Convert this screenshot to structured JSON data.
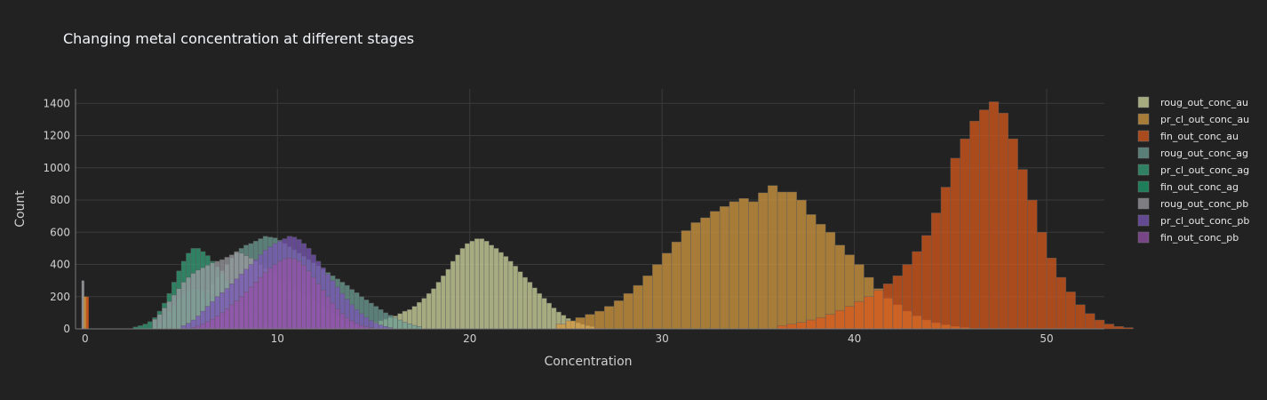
{
  "chart_data": {
    "type": "bar",
    "barmode": "overlay",
    "title": "Changing metal concentration at different stages",
    "xlabel": "Concentration",
    "ylabel": "Count",
    "xlim": [
      -0.5,
      53
    ],
    "ylim": [
      0,
      1490
    ],
    "xticks": [
      0,
      10,
      20,
      30,
      40,
      50
    ],
    "yticks": [
      0,
      200,
      400,
      600,
      800,
      1000,
      1200,
      1400
    ],
    "grid": true,
    "legend_position": "right",
    "spike_at_zero": {
      "x": 0,
      "values": {
        "roug_out_conc_pb": 300,
        "pr_cl_out_conc_au": 200,
        "fin_out_conc_au": 200
      }
    },
    "series": [
      {
        "name": "roug_out_conc_au",
        "color": "#d4d9a0",
        "bin_start": 15,
        "bin_width": 0.25,
        "values": [
          40,
          50,
          60,
          70,
          80,
          95,
          110,
          120,
          140,
          165,
          190,
          220,
          250,
          290,
          330,
          370,
          420,
          460,
          500,
          530,
          545,
          560,
          560,
          545,
          520,
          500,
          475,
          450,
          420,
          390,
          355,
          320,
          290,
          255,
          220,
          190,
          160,
          130,
          105,
          85,
          65,
          50,
          38,
          28,
          20,
          14
        ]
      },
      {
        "name": "pr_cl_out_conc_au",
        "color": "#d49a40",
        "bin_start": 24.5,
        "bin_width": 0.5,
        "values": [
          30,
          50,
          70,
          90,
          110,
          140,
          175,
          220,
          270,
          330,
          400,
          470,
          540,
          610,
          660,
          690,
          730,
          760,
          790,
          810,
          790,
          845,
          890,
          850,
          850,
          800,
          710,
          650,
          600,
          520,
          460,
          400,
          320,
          250,
          190,
          150,
          110,
          80,
          55,
          38,
          25,
          15,
          8
        ]
      },
      {
        "name": "fin_out_conc_au",
        "color": "#d85a1e",
        "bin_start": 36,
        "bin_width": 0.5,
        "values": [
          20,
          30,
          40,
          55,
          70,
          90,
          115,
          140,
          170,
          200,
          240,
          280,
          330,
          400,
          480,
          580,
          720,
          880,
          1060,
          1180,
          1290,
          1360,
          1410,
          1340,
          1180,
          990,
          800,
          600,
          440,
          320,
          230,
          150,
          95,
          55,
          30,
          15,
          8
        ]
      },
      {
        "name": "roug_out_conc_ag",
        "color": "#6e9f95",
        "bin_start": 6,
        "bin_width": 0.25,
        "values": [
          200,
          240,
          280,
          320,
          360,
          400,
          440,
          470,
          500,
          520,
          530,
          545,
          560,
          575,
          570,
          565,
          550,
          530,
          510,
          490,
          470,
          450,
          430,
          410,
          390,
          370,
          350,
          330,
          310,
          290,
          270,
          245,
          225,
          200,
          180,
          160,
          140,
          120,
          100,
          85,
          70,
          55,
          42,
          32,
          22,
          15
        ]
      },
      {
        "name": "pr_cl_out_conc_ag",
        "color": "#35a07a",
        "bin_start": 2.5,
        "bin_width": 0.25,
        "values": [
          12,
          20,
          30,
          45,
          70,
          110,
          160,
          220,
          290,
          360,
          420,
          470,
          500,
          500,
          480,
          455,
          420,
          385,
          345,
          300,
          260,
          220,
          180,
          145,
          110,
          80,
          55,
          38,
          25,
          15,
          8
        ]
      },
      {
        "name": "fin_out_conc_ag",
        "color": "#1d9e6c",
        "bin_start": 3.5,
        "bin_width": 0.25,
        "values": [
          20,
          40,
          70,
          110,
          150,
          190,
          220,
          240,
          250,
          250,
          240,
          225,
          205,
          180,
          155,
          130,
          105,
          80,
          60,
          42,
          28,
          18,
          10
        ]
      },
      {
        "name": "roug_out_conc_pb",
        "color": "#9d9da3",
        "bin_start": 3.5,
        "bin_width": 0.25,
        "values": [
          60,
          90,
          130,
          170,
          210,
          250,
          290,
          320,
          345,
          365,
          380,
          395,
          410,
          420,
          430,
          445,
          460,
          480,
          470,
          455,
          440,
          420,
          400,
          380,
          360,
          340,
          320,
          300,
          280,
          260,
          240,
          220,
          200,
          180,
          160,
          140,
          120,
          100,
          80,
          60,
          42,
          30,
          20,
          12
        ]
      },
      {
        "name": "pr_cl_out_conc_pb",
        "color": "#7a55b8",
        "bin_start": 5,
        "bin_width": 0.25,
        "values": [
          20,
          35,
          55,
          80,
          110,
          140,
          170,
          200,
          225,
          250,
          280,
          310,
          340,
          370,
          400,
          430,
          460,
          490,
          510,
          530,
          545,
          560,
          575,
          570,
          555,
          530,
          500,
          460,
          420,
          380,
          340,
          300,
          260,
          220,
          185,
          150,
          120,
          95,
          72,
          52,
          36,
          24,
          15,
          8
        ]
      },
      {
        "name": "fin_out_conc_pb",
        "color": "#9553a8",
        "bin_start": 5.5,
        "bin_width": 0.25,
        "values": [
          10,
          18,
          30,
          45,
          60,
          80,
          100,
          125,
          150,
          175,
          200,
          230,
          260,
          290,
          320,
          350,
          380,
          400,
          420,
          435,
          440,
          435,
          420,
          395,
          360,
          320,
          280,
          240,
          200,
          160,
          125,
          95,
          70,
          50,
          34,
          22,
          14,
          8
        ]
      }
    ]
  }
}
